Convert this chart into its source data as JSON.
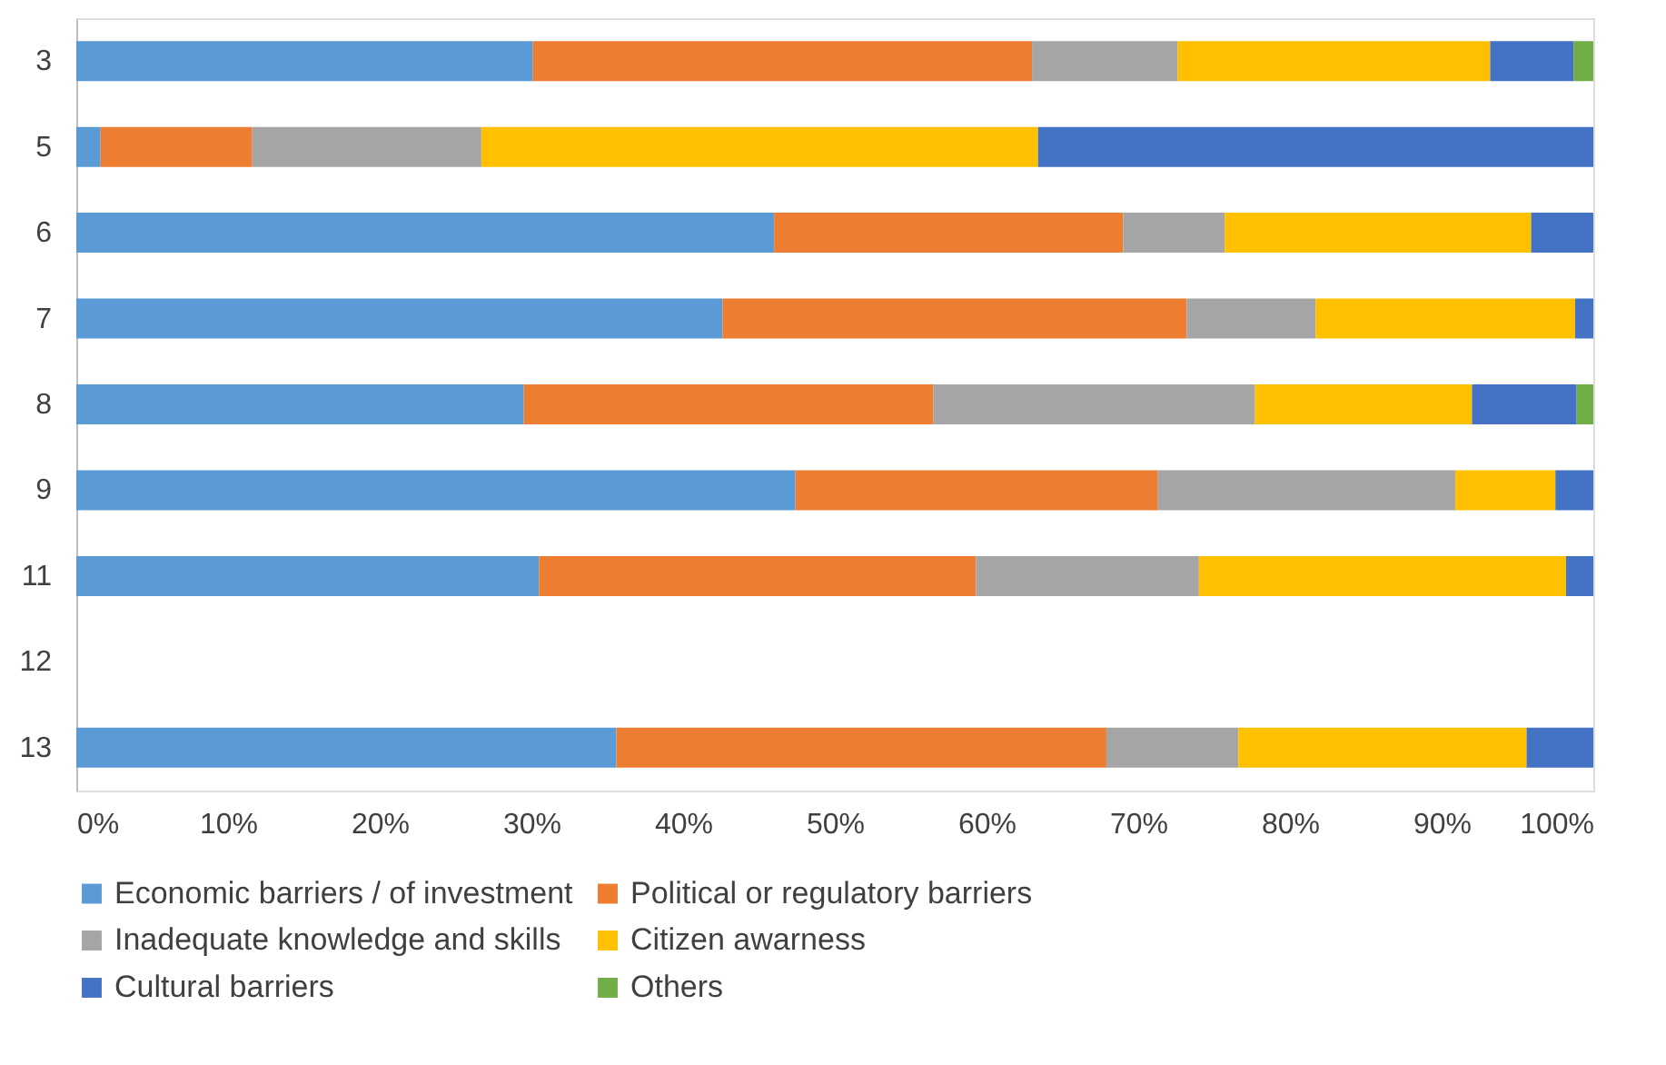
{
  "chart_data": {
    "type": "bar",
    "orientation": "horizontal",
    "stacked": true,
    "categories": [
      "3",
      "5",
      "6",
      "7",
      "8",
      "9",
      "11",
      "12",
      "13"
    ],
    "series": [
      {
        "name": "Economic barriers / of investment",
        "color": "#5b9bd5",
        "values": [
          30.1,
          1.6,
          46.0,
          42.6,
          29.5,
          47.4,
          30.5,
          null,
          35.6
        ]
      },
      {
        "name": "Political or regulatory barriers",
        "color": "#ed7d31",
        "values": [
          32.9,
          10.0,
          23.0,
          30.6,
          27.0,
          23.9,
          28.8,
          null,
          32.3
        ]
      },
      {
        "name": "Inadequate knowledge and skills",
        "color": "#a5a5a5",
        "values": [
          9.6,
          15.1,
          6.7,
          8.5,
          21.2,
          19.6,
          14.7,
          null,
          8.7
        ]
      },
      {
        "name": "Citizen awarness",
        "color": "#ffc000",
        "values": [
          20.6,
          36.7,
          20.2,
          17.1,
          14.3,
          6.6,
          24.2,
          null,
          19.0
        ]
      },
      {
        "name": "Cultural barriers",
        "color": "#4472c4",
        "values": [
          5.5,
          36.6,
          4.1,
          1.2,
          6.9,
          2.5,
          1.8,
          null,
          4.4
        ]
      },
      {
        "name": "Others",
        "color": "#70ad47",
        "values": [
          1.3,
          0,
          0,
          0,
          1.1,
          0,
          0,
          null,
          0
        ]
      }
    ],
    "xlim": [
      0,
      100
    ],
    "xticks": [
      {
        "value": 0,
        "label": "0%"
      },
      {
        "value": 10,
        "label": "10%"
      },
      {
        "value": 20,
        "label": "20%"
      },
      {
        "value": 30,
        "label": "30%"
      },
      {
        "value": 40,
        "label": "40%"
      },
      {
        "value": 50,
        "label": "50%"
      },
      {
        "value": 60,
        "label": "60%"
      },
      {
        "value": 70,
        "label": "70%"
      },
      {
        "value": 80,
        "label": "80%"
      },
      {
        "value": 90,
        "label": "90%"
      },
      {
        "value": 100,
        "label": "100%"
      }
    ],
    "grid": false,
    "legend": "bottom"
  }
}
